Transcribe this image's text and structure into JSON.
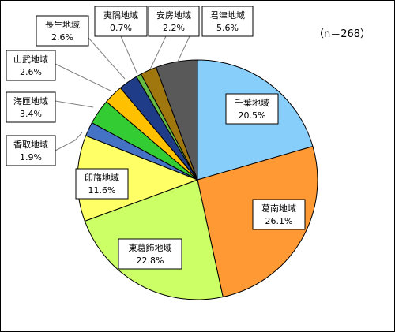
{
  "chart_data": {
    "type": "pie",
    "note": "（n＝268）",
    "slices": [
      {
        "label": "千葉地域",
        "value": 20.5,
        "display": "20.5%",
        "color": "#87CEFA"
      },
      {
        "label": "葛南地域",
        "value": 26.1,
        "display": "26.1%",
        "color": "#FF9933"
      },
      {
        "label": "東葛飾地域",
        "value": 22.8,
        "display": "22.8%",
        "color": "#CCFF66"
      },
      {
        "label": "印旛地域",
        "value": 11.6,
        "display": "11.6%",
        "color": "#FFFF66"
      },
      {
        "label": "香取地域",
        "value": 1.9,
        "display": "1.9%",
        "color": "#4472C4"
      },
      {
        "label": "海匝地域",
        "value": 3.4,
        "display": "3.4%",
        "color": "#33CC33"
      },
      {
        "label": "山武地域",
        "value": 2.6,
        "display": "2.6%",
        "color": "#FFC000"
      },
      {
        "label": "長生地域",
        "value": 2.6,
        "display": "2.6%",
        "color": "#1F3C88"
      },
      {
        "label": "夷隅地域",
        "value": 0.7,
        "display": "0.7%",
        "color": "#66BB44"
      },
      {
        "label": "安房地域",
        "value": 2.2,
        "display": "2.2%",
        "color": "#A0760E"
      },
      {
        "label": "君津地域",
        "value": 5.6,
        "display": "5.6%",
        "color": "#595959"
      }
    ]
  }
}
